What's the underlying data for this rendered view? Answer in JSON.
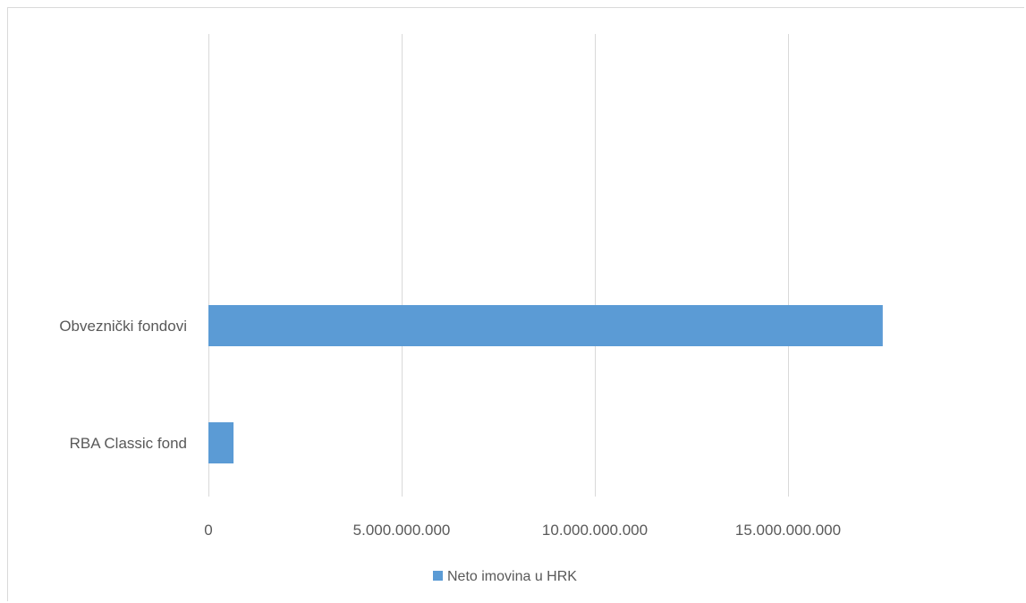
{
  "chart_data": {
    "type": "bar",
    "orientation": "horizontal",
    "categories": [
      "Obveznički fondovi",
      "RBA Classic fond"
    ],
    "series": [
      {
        "name": "Neto imovina u HRK",
        "color": "#5b9bd5",
        "values": [
          17450000000,
          650000000
        ]
      }
    ],
    "xlim": [
      0,
      20000000000
    ],
    "xticks": [
      0,
      5000000000,
      10000000000,
      15000000000
    ],
    "xtick_labels": [
      "0",
      "5.000.000.000",
      "10.000.000.000",
      "15.000.000.000"
    ],
    "grid": true,
    "gridline_color": "#d9d9d9",
    "legend_position": "bottom",
    "title": "",
    "xlabel": "",
    "ylabel": ""
  }
}
